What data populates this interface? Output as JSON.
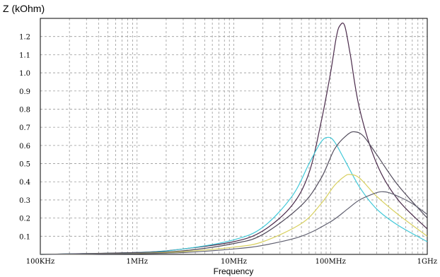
{
  "chart_data": {
    "type": "line",
    "title": "",
    "ylabel": "Z (kOhm)",
    "xlabel": "Frequency",
    "xscale": "log",
    "xlim": [
      100000,
      1000000000
    ],
    "ylim": [
      0,
      1.3
    ],
    "grid": true,
    "x_ticks": [
      {
        "value": 100000,
        "label": "100KHz"
      },
      {
        "value": 1000000,
        "label": "1MHz"
      },
      {
        "value": 10000000,
        "label": "10MHz"
      },
      {
        "value": 100000000,
        "label": "100MHz"
      },
      {
        "value": 1000000000,
        "label": "1GHz"
      }
    ],
    "y_ticks": [
      {
        "value": 0.1,
        "label": "0.1"
      },
      {
        "value": 0.2,
        "label": "0.2"
      },
      {
        "value": 0.3,
        "label": "0.3"
      },
      {
        "value": 0.4,
        "label": "0.4"
      },
      {
        "value": 0.5,
        "label": "0.5"
      },
      {
        "value": 0.6,
        "label": "0.6"
      },
      {
        "value": 0.7,
        "label": "0.7"
      },
      {
        "value": 0.8,
        "label": "0.8"
      },
      {
        "value": 0.9,
        "label": "0.9"
      },
      {
        "value": 1.0,
        "label": "1.0"
      },
      {
        "value": 1.1,
        "label": "1.1"
      },
      {
        "value": 1.2,
        "label": "1.2"
      }
    ],
    "series": [
      {
        "color": "#4a2a4a",
        "x": [
          100000,
          1000000,
          3000000,
          10000000,
          20000000,
          40000000,
          60000000,
          80000000,
          100000000,
          115000000,
          125000000,
          140000000,
          160000000,
          200000000,
          300000000,
          500000000,
          1000000000
        ],
        "y": [
          0.0,
          0.01,
          0.03,
          0.07,
          0.13,
          0.27,
          0.45,
          0.73,
          1.0,
          1.2,
          1.26,
          1.26,
          1.1,
          0.8,
          0.5,
          0.3,
          0.14
        ]
      },
      {
        "color": "#40c8d8",
        "x": [
          100000,
          1000000,
          3000000,
          10000000,
          20000000,
          40000000,
          60000000,
          80000000,
          95000000,
          110000000,
          140000000,
          200000000,
          300000000,
          500000000,
          1000000000
        ],
        "y": [
          0.0,
          0.01,
          0.03,
          0.08,
          0.15,
          0.32,
          0.5,
          0.62,
          0.645,
          0.62,
          0.52,
          0.37,
          0.25,
          0.16,
          0.07
        ]
      },
      {
        "color": "#504a5a",
        "x": [
          100000,
          1000000,
          3000000,
          10000000,
          20000000,
          50000000,
          80000000,
          110000000,
          150000000,
          180000000,
          220000000,
          300000000,
          500000000,
          1000000000
        ],
        "y": [
          0.0,
          0.01,
          0.02,
          0.06,
          0.11,
          0.27,
          0.42,
          0.58,
          0.66,
          0.675,
          0.65,
          0.55,
          0.38,
          0.2
        ]
      },
      {
        "color": "#d8d060",
        "x": [
          100000,
          1000000,
          3000000,
          10000000,
          20000000,
          50000000,
          80000000,
          110000000,
          140000000,
          160000000,
          200000000,
          300000000,
          500000000,
          1000000000
        ],
        "y": [
          0.0,
          0.005,
          0.015,
          0.04,
          0.07,
          0.17,
          0.28,
          0.38,
          0.43,
          0.44,
          0.42,
          0.32,
          0.22,
          0.1
        ]
      },
      {
        "color": "#606070",
        "x": [
          100000,
          1000000,
          3000000,
          10000000,
          20000000,
          50000000,
          100000000,
          150000000,
          200000000,
          300000000,
          350000000,
          400000000,
          500000000,
          700000000,
          1000000000
        ],
        "y": [
          0.0,
          0.004,
          0.01,
          0.03,
          0.05,
          0.1,
          0.18,
          0.25,
          0.3,
          0.34,
          0.345,
          0.34,
          0.32,
          0.28,
          0.22
        ]
      }
    ]
  }
}
